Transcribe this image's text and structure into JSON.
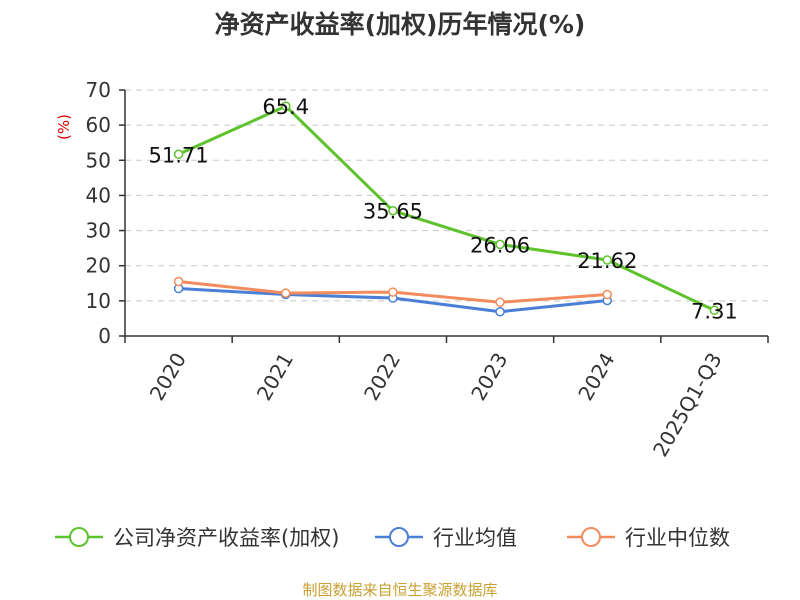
{
  "chart_data": {
    "type": "line",
    "title": "净资产收益率(加权)历年情况(%)",
    "ylabel": "(%)",
    "ylim": [
      0,
      70
    ],
    "yticks": [
      0,
      10,
      20,
      30,
      40,
      50,
      60,
      70
    ],
    "grid": true,
    "legend_position": "bottom",
    "categories": [
      "2020",
      "2021",
      "2022",
      "2023",
      "2024",
      "2025Q1-Q3"
    ],
    "series": [
      {
        "name": "公司净资产收益率(加权)",
        "color": "#5dc22c",
        "values": [
          51.71,
          65.4,
          35.65,
          26.06,
          21.62,
          7.31
        ],
        "labels": [
          "51.71",
          "65.4",
          "35.65",
          "26.06",
          "21.62",
          "7.31"
        ]
      },
      {
        "name": "行业均值",
        "color": "#4a7fd6",
        "values": [
          13.5,
          11.8,
          10.8,
          6.9,
          10.1,
          null
        ]
      },
      {
        "name": "行业中位数",
        "color": "#f28c5e",
        "values": [
          15.5,
          12.2,
          12.5,
          9.6,
          11.8,
          null
        ]
      }
    ]
  },
  "footer": {
    "source": "制图数据来自恒生聚源数据库"
  }
}
